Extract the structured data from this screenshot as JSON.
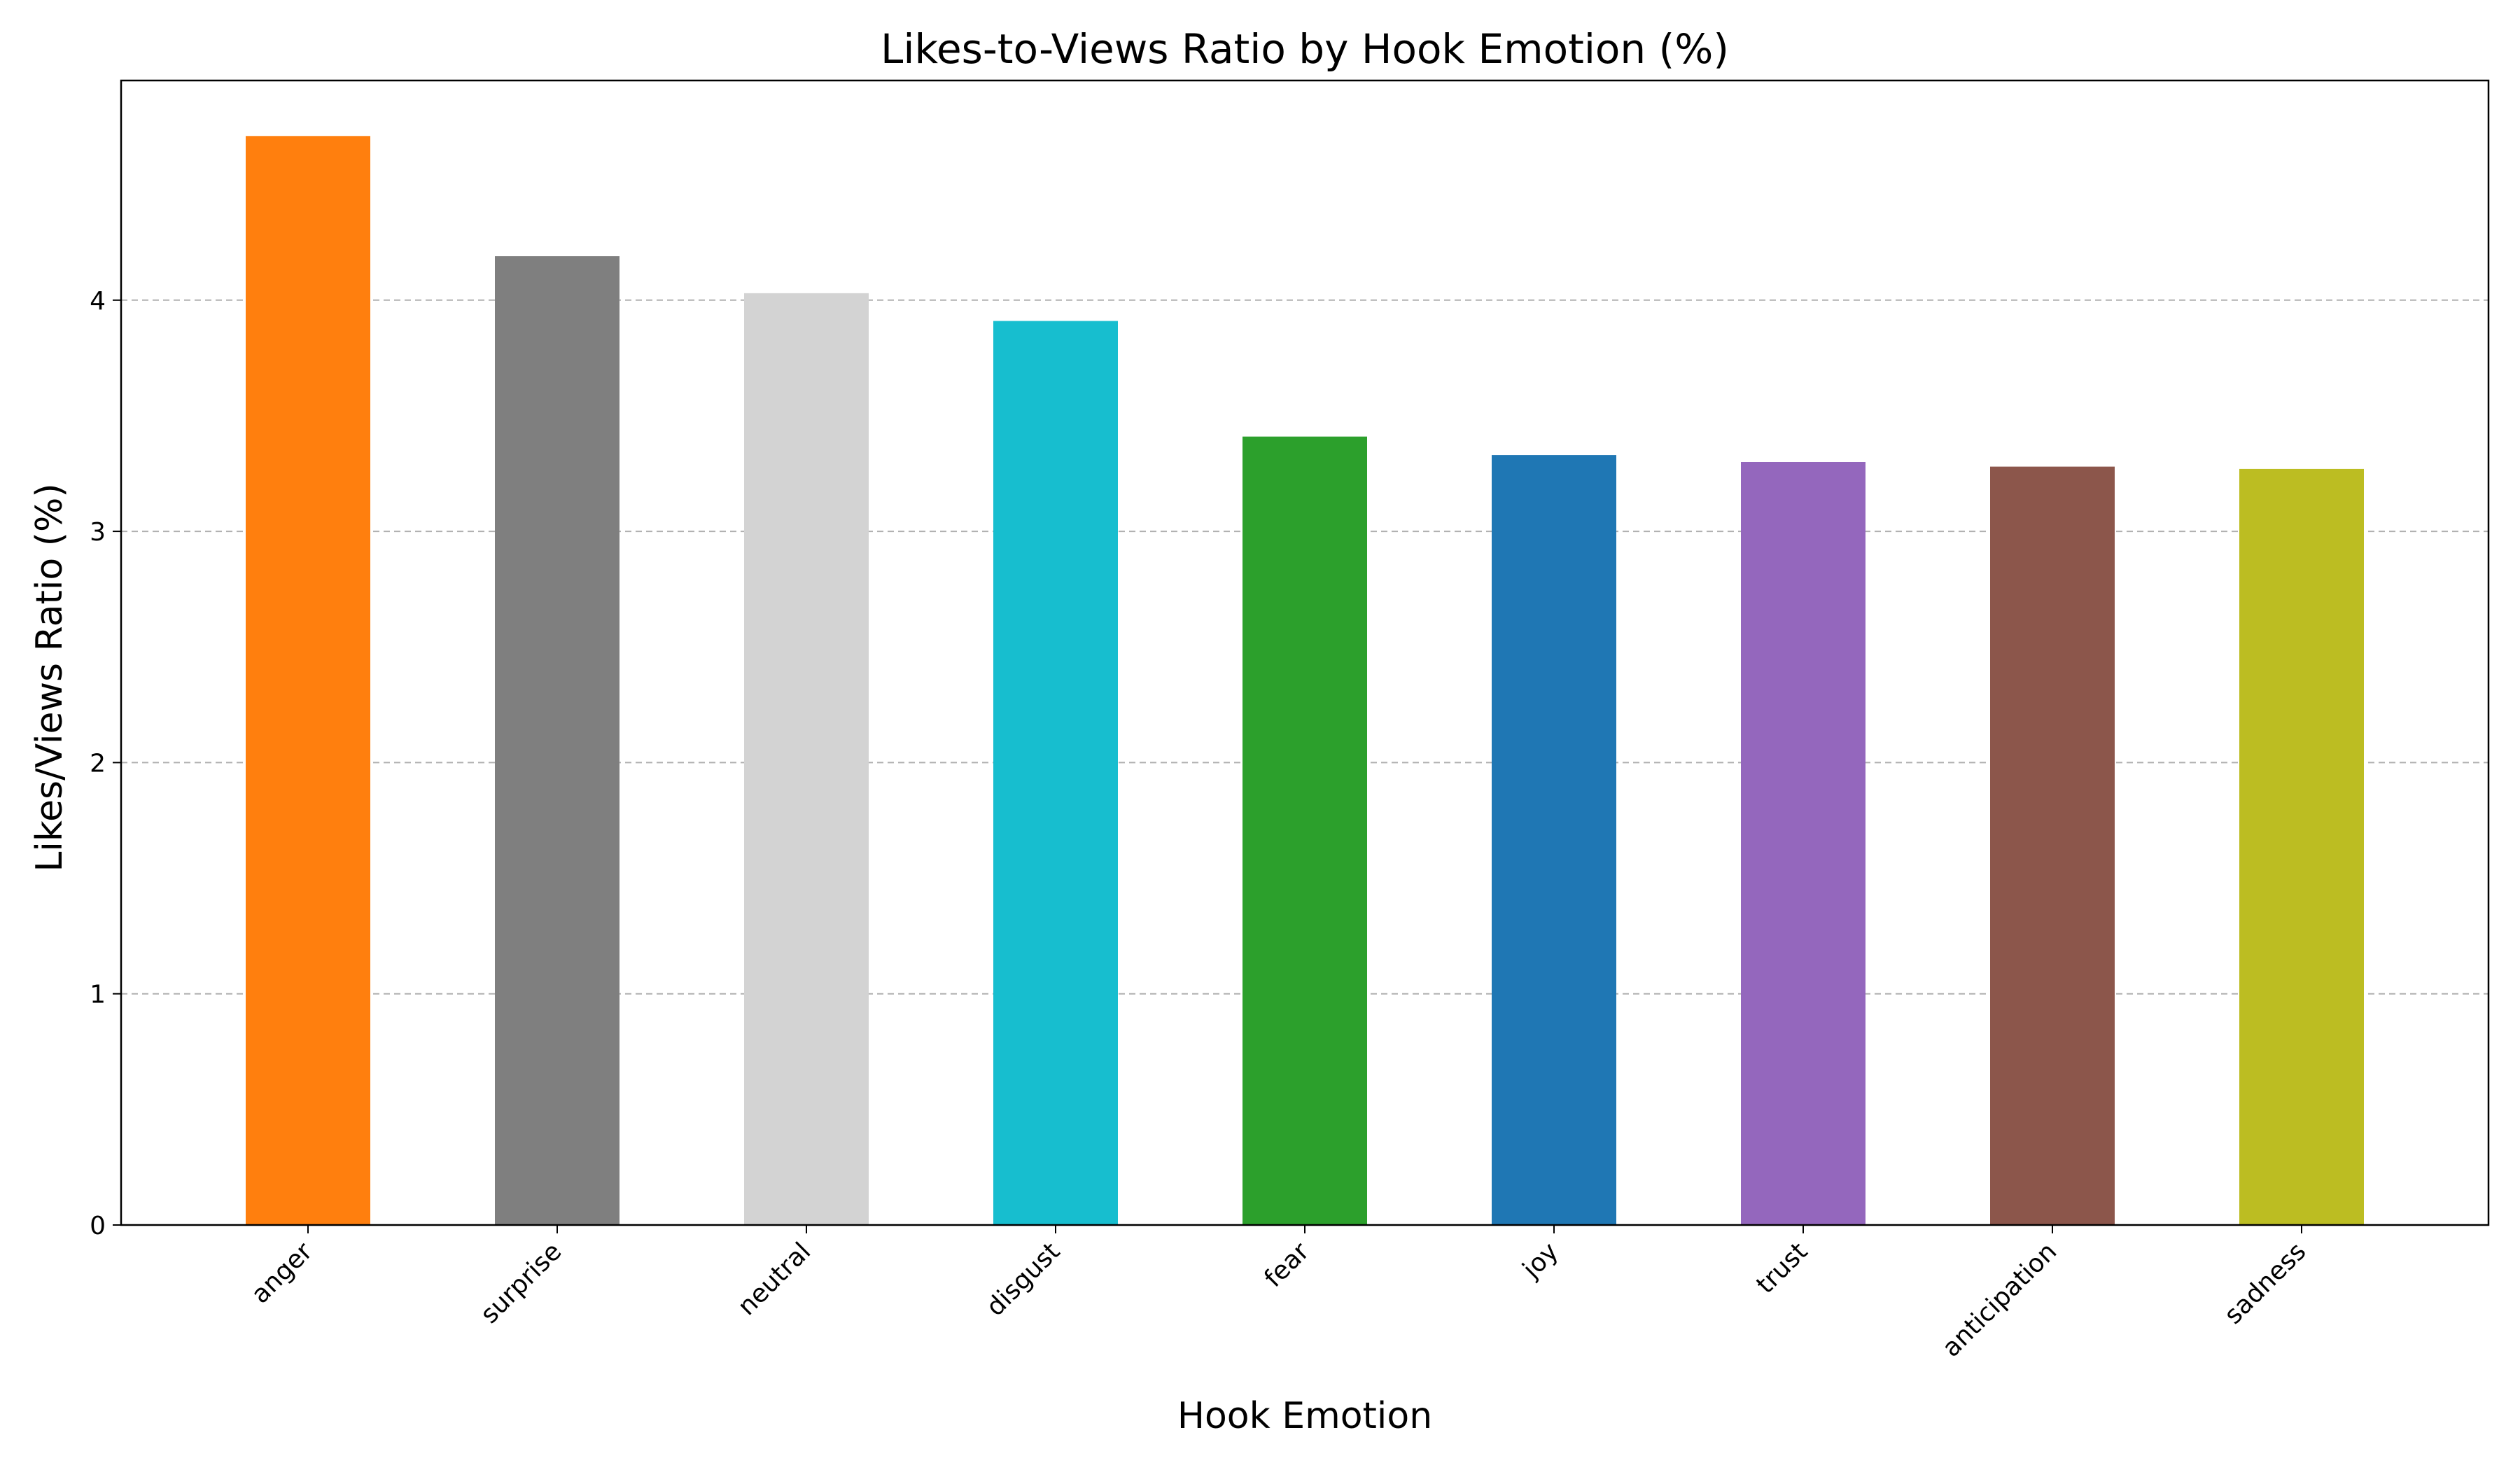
{
  "chart_data": {
    "type": "bar",
    "title": "Likes-to-Views Ratio by Hook Emotion (%)",
    "xlabel": "Hook Emotion",
    "ylabel": "Likes/Views Ratio (%)",
    "categories": [
      "anger",
      "surprise",
      "neutral",
      "disgust",
      "fear",
      "joy",
      "trust",
      "anticipation",
      "sadness"
    ],
    "values": [
      4.71,
      4.19,
      4.03,
      3.91,
      3.41,
      3.33,
      3.3,
      3.28,
      3.27
    ],
    "colors": [
      "#ff7f0e",
      "#7f7f7f",
      "#d3d3d3",
      "#17becf",
      "#2ca02c",
      "#1f77b4",
      "#9467bd",
      "#8c564b",
      "#bcbd22"
    ],
    "ylim": [
      0,
      4.95
    ],
    "yticks": [
      0,
      1,
      2,
      3,
      4
    ],
    "grid": "y-dashed",
    "legend": "none"
  }
}
